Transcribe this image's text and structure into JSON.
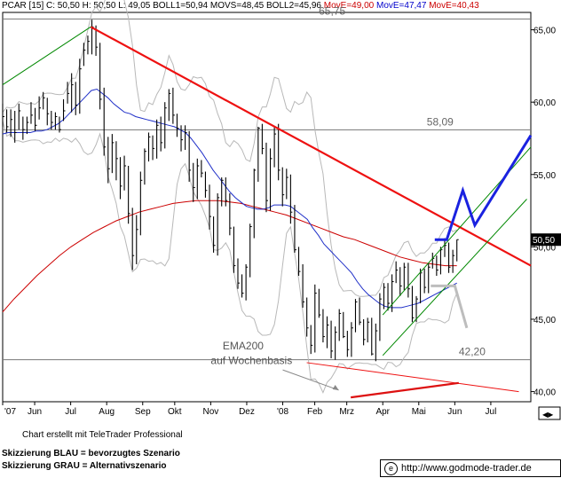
{
  "header": {
    "symbol": "PCAR [15]",
    "ohlc": "C: 50,50 H: 50,50 L: 49,05",
    "boll": "BOLL1=50,94 MOVS=48,45 BOLL2=45,96",
    "move1": "MovE=49,00",
    "move2": "MovE=47,47",
    "move3": "MovE=40,43",
    "move1_color": "#cc0000",
    "move2_color": "#0000cc",
    "move3_color": "#cc0000"
  },
  "credit": "Chart erstellt mit TeleTrader Professional",
  "legend": {
    "blue": "Skizzierung BLAU = bevorzugtes Szenario",
    "gray": "Skizzierung GRAU = Alternativszenario"
  },
  "website": {
    "icon": "copyright-icon",
    "text": "http://www.godmode-trader.de"
  },
  "chart_data": {
    "type": "line",
    "y_axis": {
      "position": "right",
      "ylim": [
        39.3,
        66.2
      ],
      "ticks": [
        "40,00",
        "45,00",
        "50,00",
        "55,00",
        "60,00",
        "65,00"
      ],
      "tick_values": [
        40,
        45,
        50,
        55,
        60,
        65
      ]
    },
    "x_axis": {
      "ticks": [
        "'07",
        "Jun",
        "Jul",
        "Aug",
        "Sep",
        "Okt",
        "Nov",
        "Dez",
        "'08",
        "Feb",
        "Mrz",
        "Apr",
        "Mai",
        "Jun",
        "Jul"
      ],
      "tick_index": [
        0,
        8,
        17,
        26,
        35,
        43,
        52,
        61,
        70,
        78,
        86,
        95,
        104,
        113,
        122
      ]
    },
    "last_price": {
      "label": "50,50",
      "value": 50.5
    },
    "levels": [
      {
        "label": "65,75",
        "value": 65.75
      },
      {
        "label": "58,09",
        "value": 58.09
      },
      {
        "label": "42,20",
        "value": 42.2
      }
    ],
    "annotations": {
      "ema_label": "EMA200",
      "ema_sub": "auf Wochenbasis"
    },
    "close_series": [
      59.0,
      58.3,
      58.8,
      57.9,
      59.4,
      58.1,
      58.6,
      59.1,
      58.4,
      59.6,
      60.3,
      59.2,
      58.6,
      59.0,
      58.1,
      59.4,
      60.6,
      61.2,
      59.8,
      62.3,
      63.6,
      64.2,
      65.2,
      63.8,
      60.2,
      56.9,
      55.4,
      57.2,
      56.1,
      54.2,
      55.6,
      52.3,
      49.4,
      51.2,
      54.6,
      56.6,
      57.6,
      56.8,
      58.4,
      57.2,
      59.6,
      60.6,
      59.1,
      58.2,
      57.4,
      57.9,
      55.3,
      54.1,
      55.6,
      55.1,
      53.9,
      52.1,
      50.1,
      53.4,
      54.6,
      53.2,
      51.3,
      48.7,
      47.5,
      46.8,
      48.6,
      51.4,
      55.3,
      58.2,
      56.8,
      53.2,
      56.1,
      57.8,
      55.3,
      53.6,
      54.8,
      52.4,
      49.8,
      48.3,
      46.2,
      44.4,
      43.2,
      46.8,
      45.3,
      43.8,
      44.6,
      42.8,
      44.1,
      45.4,
      43.8,
      42.9,
      44.4,
      46.2,
      44.8,
      43.6,
      44.8,
      42.6,
      44.2,
      46.4,
      47.2,
      46.1,
      47.6,
      48.4,
      47.3,
      48.6,
      47.1,
      45.1,
      46.4,
      48.2,
      47.2,
      48.6,
      49.2,
      48.4,
      49.8,
      50.1,
      48.6,
      49.4,
      50.5
    ],
    "high_series": [
      59.9,
      59.5,
      59.5,
      59.4,
      59.9,
      59.0,
      59.0,
      60.0,
      59.6,
      60.4,
      60.7,
      60.3,
      59.4,
      59.3,
      59.0,
      60.2,
      61.4,
      62.0,
      61.4,
      63.0,
      64.1,
      64.6,
      65.7,
      65.3,
      64.1,
      61.0,
      57.6,
      57.8,
      57.3,
      56.2,
      56.3,
      55.6,
      52.7,
      52.2,
      55.2,
      56.8,
      57.9,
      57.7,
      58.8,
      59.0,
      60.0,
      60.9,
      61.0,
      59.2,
      58.4,
      58.4,
      58.0,
      55.8,
      56.1,
      56.0,
      55.2,
      54.3,
      52.1,
      53.7,
      54.8,
      54.8,
      53.7,
      51.4,
      49.2,
      48.1,
      48.8,
      51.6,
      55.4,
      58.3,
      58.5,
      57.2,
      56.8,
      58.3,
      58.5,
      55.5,
      55.4,
      55.0,
      52.9,
      50.0,
      48.8,
      46.5,
      44.6,
      47.4,
      47.1,
      45.7,
      45.2,
      44.9,
      44.5,
      45.7,
      45.5,
      44.2,
      44.8,
      46.4,
      46.5,
      45.0,
      45.1,
      45.1,
      44.7,
      46.8,
      47.5,
      47.5,
      48.1,
      49.0,
      48.6,
      48.9,
      48.9,
      47.3,
      46.6,
      48.5,
      48.5,
      48.9,
      49.6,
      49.4,
      50.0,
      50.6,
      50.3,
      49.8,
      50.5
    ],
    "low_series": [
      58.3,
      57.9,
      57.6,
      57.2,
      58.1,
      57.4,
      57.8,
      58.5,
      58.0,
      58.8,
      59.5,
      58.4,
      58.1,
      58.1,
      57.9,
      58.7,
      59.9,
      59.3,
      59.1,
      59.2,
      62.5,
      63.3,
      63.3,
      63.2,
      59.5,
      56.3,
      54.4,
      55.1,
      54.6,
      53.3,
      53.9,
      51.6,
      48.4,
      48.8,
      50.8,
      54.3,
      55.9,
      56.0,
      56.1,
      56.6,
      56.8,
      58.7,
      58.5,
      57.6,
      56.6,
      56.7,
      54.5,
      53.1,
      53.3,
      54.8,
      53.4,
      51.2,
      49.6,
      49.4,
      52.8,
      52.8,
      50.8,
      48.2,
      47.1,
      46.5,
      46.3,
      47.9,
      50.6,
      54.5,
      56.4,
      52.4,
      52.5,
      55.5,
      54.6,
      52.8,
      53.3,
      51.6,
      49.6,
      48.0,
      45.8,
      43.8,
      42.6,
      42.7,
      45.1,
      43.4,
      43.0,
      42.3,
      42.2,
      43.5,
      43.7,
      42.4,
      42.4,
      44.1,
      44.6,
      43.2,
      43.4,
      42.5,
      42.1,
      43.5,
      45.7,
      45.6,
      45.5,
      47.5,
      46.6,
      47.0,
      46.5,
      44.8,
      44.8,
      46.1,
      46.8,
      46.8,
      48.5,
      48.0,
      48.1,
      49.3,
      48.2,
      48.2,
      49.0
    ],
    "ema_blue": [
      57.8,
      57.9,
      57.9,
      57.9,
      57.9,
      57.9,
      58.0,
      58.0,
      58.1,
      58.3,
      58.5,
      58.8,
      59.2,
      59.6,
      60.0,
      60.4,
      60.8,
      60.9,
      60.6,
      60.3,
      59.9,
      59.6,
      59.3,
      59.2,
      59.0,
      58.9,
      58.8,
      58.7,
      58.6,
      58.5,
      58.4,
      58.3,
      58.1,
      57.9,
      57.5,
      57.0,
      56.5,
      55.9,
      55.3,
      54.8,
      54.3,
      53.8,
      53.4,
      53.1,
      52.8,
      52.7,
      52.6,
      52.6,
      52.7,
      52.9,
      52.9,
      52.9,
      52.8,
      52.5,
      52.2,
      51.9,
      51.3,
      50.8,
      50.2,
      49.8,
      49.4,
      49.0,
      48.6,
      48.2,
      47.6,
      47.1,
      46.7,
      46.4,
      46.1,
      45.9,
      45.8,
      45.8,
      45.8,
      45.9,
      46.0,
      46.1,
      46.3,
      46.5,
      46.7,
      46.9,
      47.1,
      47.3,
      47.5
    ],
    "ema_red": [
      45.5,
      46.4,
      47.2,
      48.0,
      48.7,
      49.4,
      50.0,
      50.5,
      51.0,
      51.4,
      51.8,
      52.1,
      52.4,
      52.6,
      52.8,
      53.0,
      53.1,
      53.2,
      53.2,
      53.2,
      53.1,
      53.0,
      52.8,
      52.6,
      52.4,
      52.2,
      51.9,
      51.6,
      51.3,
      51.0,
      50.7,
      50.5,
      50.2,
      49.9,
      49.6,
      49.3,
      49.1,
      48.9,
      48.8,
      48.7,
      48.7
    ],
    "trendlines": [
      {
        "color": "#ee1111",
        "from": [
          22,
          65.2
        ],
        "to": [
          132,
          48.7
        ]
      },
      {
        "color": "#008800",
        "from": [
          0,
          61.2
        ],
        "to": [
          22,
          65.2
        ]
      },
      {
        "color": "#008800",
        "from": [
          95,
          45.3
        ],
        "to": [
          132,
          56.9
        ]
      },
      {
        "color": "#008800",
        "from": [
          95,
          42.5
        ],
        "to": [
          131,
          53.3
        ]
      },
      {
        "color": "#ee1111",
        "from": [
          76,
          42.0
        ],
        "to": [
          129,
          40.0
        ]
      },
      {
        "color": "#dd1111",
        "from": [
          87,
          39.6
        ],
        "to": [
          114,
          40.6
        ]
      }
    ],
    "scenario_blue": [
      [
        108,
        50.5
      ],
      [
        111,
        50.5
      ],
      [
        115,
        53.9
      ],
      [
        118,
        51.5
      ],
      [
        132,
        57.7
      ]
    ],
    "scenario_gray": [
      [
        107,
        47.3
      ],
      [
        113,
        47.3
      ],
      [
        116,
        44.4
      ]
    ]
  }
}
